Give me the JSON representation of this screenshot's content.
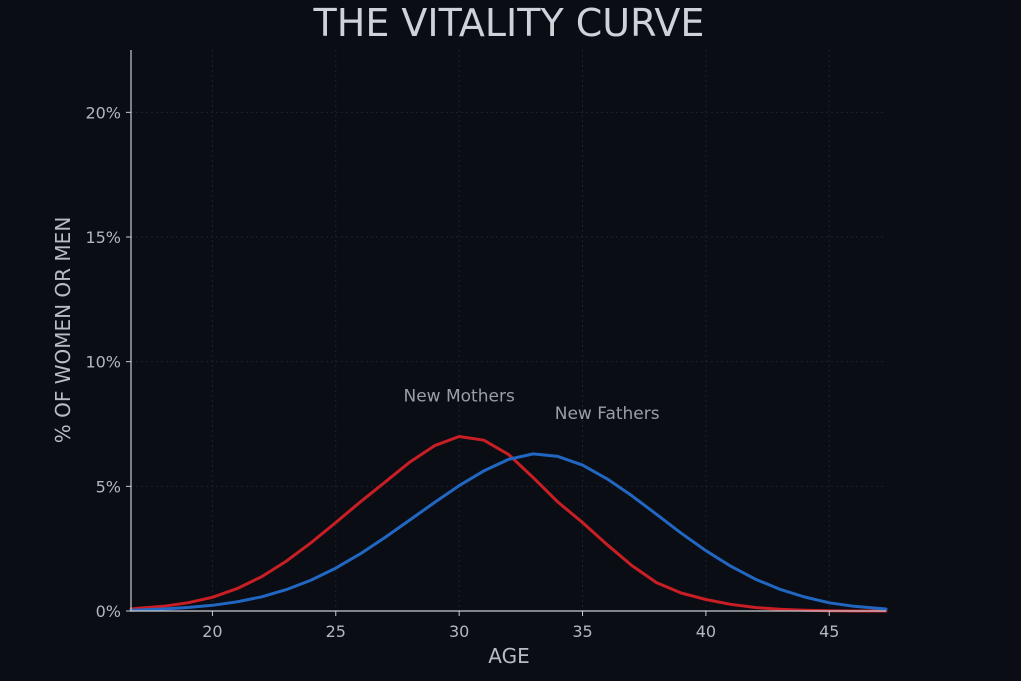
{
  "chart_data": {
    "type": "line",
    "title": "THE VITALITY CURVE",
    "xlabel": "AGE",
    "ylabel": "% OF WOMEN OR MEN",
    "xlim": [
      16.7,
      47.3
    ],
    "ylim": [
      0,
      22.5
    ],
    "x_ticks": [
      20,
      25,
      30,
      35,
      40,
      45
    ],
    "y_ticks": [
      0,
      5,
      10,
      15,
      20
    ],
    "y_tick_labels": [
      "0%",
      "5%",
      "10%",
      "15%",
      "20%"
    ],
    "grid": true,
    "series": [
      {
        "name": "New Mothers",
        "color": "#c81e24",
        "x": [
          16.7,
          17,
          18,
          19,
          20,
          21,
          22,
          23,
          24,
          25,
          26,
          27,
          28,
          29,
          30,
          31,
          32,
          33,
          34,
          35,
          36,
          37,
          38,
          39,
          40,
          41,
          42,
          43,
          44,
          45,
          46,
          47.3
        ],
        "y": [
          0.08,
          0.11,
          0.19,
          0.33,
          0.55,
          0.9,
          1.38,
          2.0,
          2.74,
          3.55,
          4.38,
          5.17,
          5.97,
          6.63,
          7.0,
          6.85,
          6.28,
          5.35,
          4.37,
          3.55,
          2.66,
          1.82,
          1.14,
          0.72,
          0.46,
          0.27,
          0.14,
          0.07,
          0.03,
          0.01,
          0.0,
          0.0
        ]
      },
      {
        "name": "New Fathers",
        "color": "#2167c2",
        "x": [
          16.7,
          17,
          18,
          19,
          20,
          21,
          22,
          23,
          24,
          25,
          26,
          27,
          28,
          29,
          30,
          31,
          32,
          33,
          34,
          35,
          36,
          37,
          38,
          39,
          40,
          41,
          42,
          43,
          44,
          45,
          46,
          47.3
        ],
        "y": [
          0.03,
          0.04,
          0.08,
          0.14,
          0.23,
          0.37,
          0.57,
          0.86,
          1.24,
          1.72,
          2.3,
          2.95,
          3.65,
          4.35,
          5.03,
          5.62,
          6.08,
          6.3,
          6.2,
          5.85,
          5.3,
          4.62,
          3.88,
          3.12,
          2.42,
          1.8,
          1.28,
          0.87,
          0.56,
          0.33,
          0.19,
          0.08
        ]
      }
    ],
    "annotations": [
      {
        "text": "New Mothers",
        "x": 30,
        "y": 8.4
      },
      {
        "text": "New Fathers",
        "x": 36.0,
        "y": 7.7
      }
    ]
  }
}
